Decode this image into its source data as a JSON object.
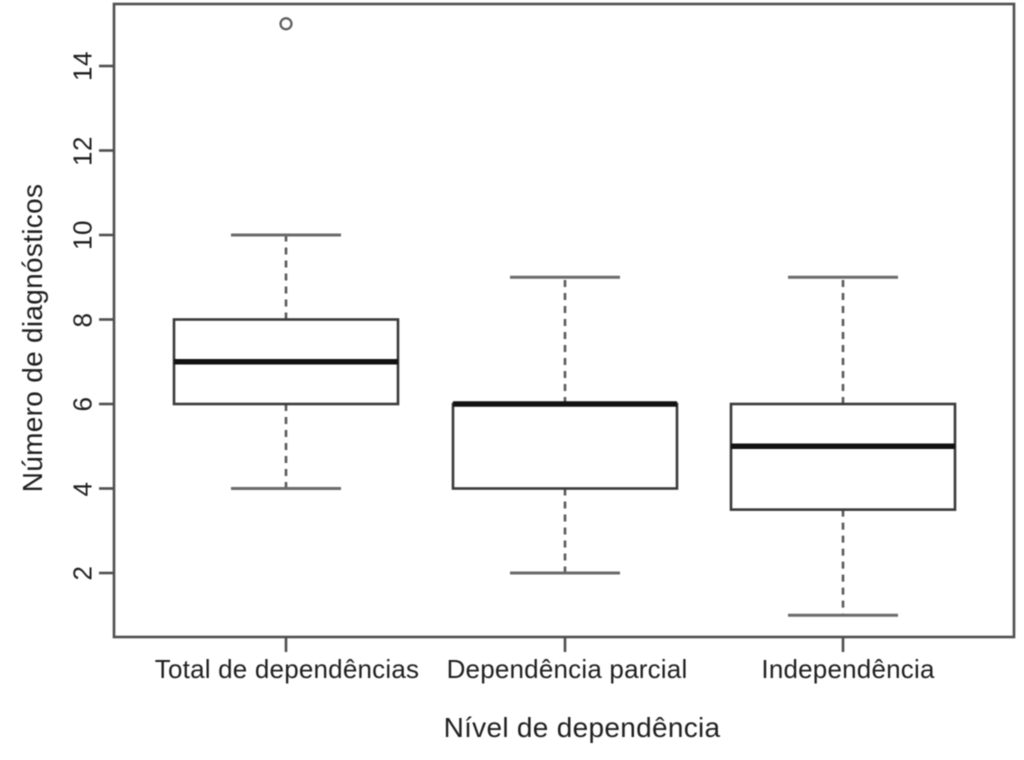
{
  "chart_data": {
    "type": "boxplot",
    "title": "",
    "xlabel": "Nível de dependência",
    "ylabel": "Número de diagnósticos",
    "categories": [
      "Total de dependências",
      "Dependência parcial",
      "Independência"
    ],
    "y_ticks": [
      2,
      4,
      6,
      8,
      10,
      12,
      14
    ],
    "ylim": [
      0.4,
      15.6
    ],
    "grid": false,
    "legend": "none",
    "boxes": [
      {
        "category": "Total de dependências",
        "whisker_low": 4,
        "q1": 6,
        "median": 7,
        "q3": 8,
        "whisker_high": 10,
        "outliers": [
          15
        ]
      },
      {
        "category": "Dependência parcial",
        "whisker_low": 2,
        "q1": 4,
        "median": 6,
        "q3": 6,
        "whisker_high": 9,
        "outliers": []
      },
      {
        "category": "Independência",
        "whisker_low": 1,
        "q1": 3.5,
        "median": 5,
        "q3": 6,
        "whisker_high": 9,
        "outliers": []
      }
    ],
    "colors": {
      "frame": "#4f4f4f",
      "box_stroke": "#3a3a3a",
      "box_fill": "#ffffff",
      "median": "#121212",
      "whisker": "#5a5a5a",
      "cap": "#6b6b6b",
      "outlier": "#5c5c5c",
      "text": "#1f1f1f",
      "background": "#ffffff"
    }
  }
}
